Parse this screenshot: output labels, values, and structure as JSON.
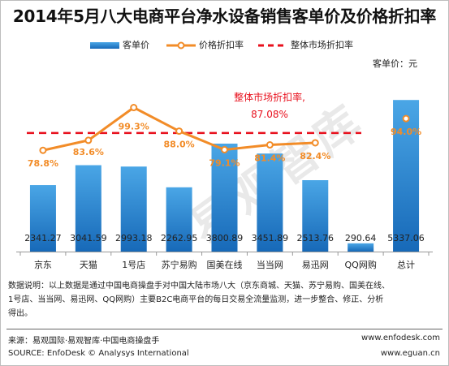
{
  "title": "2014年5月八大电商平台净水设备销售客单价及价格折扣率",
  "legend": {
    "bar": "客单价",
    "line": "价格折扣率",
    "dashed": "整体市场折扣率"
  },
  "unit_label": "客单价：元",
  "annotation": {
    "line1": "整体市场折扣率,",
    "line2": "87.08%"
  },
  "watermark": "易观智库",
  "colors": {
    "bar_top": "#4aa6e6",
    "bar_bottom": "#1769b8",
    "line": "#f28c28",
    "dashed": "#e8101d",
    "annotation": "#e8101d",
    "discount_label": "#f28c28"
  },
  "chart_data": {
    "type": "bar+line",
    "categories": [
      "京东",
      "天猫",
      "1号店",
      "苏宁易购",
      "国美在线",
      "当当网",
      "易迅网",
      "QQ网购",
      "总计"
    ],
    "series": [
      {
        "name": "客单价",
        "kind": "bar",
        "values": [
          2341.27,
          3041.59,
          2993.18,
          2262.95,
          3800.89,
          3451.89,
          2513.76,
          290.64,
          5337.06
        ],
        "labels": [
          "2341.27",
          "3041.59",
          "2993.18",
          "2262.95",
          "3800.89",
          "3451.89",
          "2513.76",
          "290.64",
          "5337.06"
        ]
      },
      {
        "name": "价格折扣率",
        "kind": "line",
        "values": [
          78.8,
          83.6,
          99.3,
          88.0,
          79.1,
          81.4,
          82.4,
          null,
          94.0
        ],
        "labels": [
          "78.8%",
          "83.6%",
          "99.3%",
          "88.0%",
          "79.1%",
          "81.4%",
          "82.4%",
          "",
          "94.0%"
        ]
      },
      {
        "name": "整体市场折扣率",
        "kind": "reference-line",
        "value": 87.08
      }
    ],
    "bar_ylim": [
      0,
      6000
    ],
    "line_ylim": [
      40,
      110
    ],
    "grid": false,
    "legend_position": "top"
  },
  "notes": {
    "line1": "数据说明：以上数据是通过中国电商操盘手对中国大陆市场八大（京东商城、天猫、苏宁易购、国美在线、",
    "line2": "1号店、当当网、易迅网、QQ网购）主要B2C电商平台的每日交易全流量监测，进一步整合、修正、分析",
    "line3": "得出。"
  },
  "footer": {
    "source_cn": "来源：易观国际·易观智库·中国电商操盘手",
    "source_en": "SOURCE: EnfoDesk © Analysys International",
    "url1": "www.enfodesk.com",
    "url2": "www.eguan.cn"
  }
}
